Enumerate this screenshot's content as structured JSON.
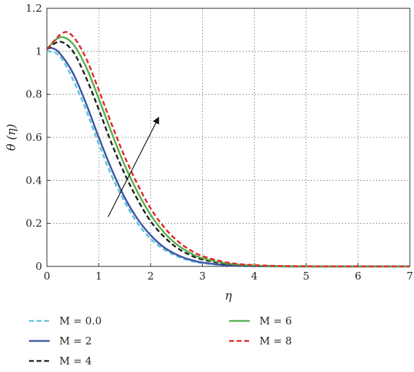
{
  "chart_data": {
    "type": "line",
    "title": "",
    "xlabel": "η",
    "ylabel": "θ (η)",
    "xlim": [
      0,
      7
    ],
    "ylim": [
      0,
      1.2
    ],
    "xticks": [
      "0",
      "1",
      "2",
      "3",
      "4",
      "5",
      "6",
      "7"
    ],
    "yticks": [
      "0",
      "0.2",
      "0.4",
      "0.6",
      "0.8",
      "1",
      "1.2"
    ],
    "grid": true,
    "legend_position": "bottom",
    "series": [
      {
        "name": "M = 0.0",
        "color": "#5bc4e0",
        "dash": "dashed",
        "x": [
          0,
          0.15,
          0.3,
          0.5,
          0.75,
          1.0,
          1.25,
          1.5,
          1.75,
          2.0,
          2.25,
          2.5,
          2.75,
          3.0,
          3.5,
          4.0,
          5.0,
          6.0,
          7.0
        ],
        "y": [
          1.0,
          0.995,
          0.96,
          0.87,
          0.73,
          0.57,
          0.42,
          0.3,
          0.2,
          0.128,
          0.08,
          0.048,
          0.027,
          0.015,
          0.004,
          0.001,
          0.0,
          0.0,
          0.0
        ]
      },
      {
        "name": "M = 2",
        "color": "#3e54a3",
        "dash": "solid",
        "x": [
          0,
          0.1,
          0.25,
          0.5,
          0.75,
          1.0,
          1.25,
          1.5,
          1.75,
          2.0,
          2.25,
          2.5,
          2.75,
          3.0,
          3.5,
          4.0,
          5.0,
          6.0,
          7.0
        ],
        "y": [
          1.01,
          1.015,
          0.99,
          0.9,
          0.76,
          0.6,
          0.45,
          0.32,
          0.22,
          0.145,
          0.09,
          0.055,
          0.032,
          0.018,
          0.005,
          0.001,
          0.0,
          0.0,
          0.0
        ]
      },
      {
        "name": "M = 4",
        "color": "#222222",
        "dash": "dashed",
        "x": [
          0,
          0.25,
          0.5,
          0.75,
          1.0,
          1.25,
          1.5,
          1.75,
          2.0,
          2.25,
          2.5,
          2.75,
          3.0,
          3.5,
          4.0,
          4.5,
          5.0,
          6.0,
          7.0
        ],
        "y": [
          1.01,
          1.045,
          1.0,
          0.88,
          0.73,
          0.57,
          0.43,
          0.31,
          0.21,
          0.14,
          0.088,
          0.054,
          0.032,
          0.01,
          0.003,
          0.001,
          0.0,
          0.0,
          0.0
        ]
      },
      {
        "name": "M = 6",
        "color": "#55b04a",
        "dash": "solid",
        "x": [
          0,
          0.25,
          0.5,
          0.75,
          1.0,
          1.25,
          1.5,
          1.75,
          2.0,
          2.25,
          2.5,
          2.75,
          3.0,
          3.5,
          4.0,
          4.5,
          5.0,
          6.0,
          7.0
        ],
        "y": [
          1.01,
          1.065,
          1.035,
          0.93,
          0.78,
          0.62,
          0.47,
          0.345,
          0.24,
          0.16,
          0.103,
          0.064,
          0.038,
          0.013,
          0.004,
          0.001,
          0.0,
          0.0,
          0.0
        ]
      },
      {
        "name": "M = 8",
        "color": "#e0282a",
        "dash": "dashed",
        "x": [
          0,
          0.3,
          0.5,
          0.75,
          1.0,
          1.25,
          1.5,
          1.75,
          2.0,
          2.25,
          2.5,
          2.75,
          3.0,
          3.5,
          4.0,
          4.5,
          5.0,
          6.0,
          7.0
        ],
        "y": [
          1.01,
          1.085,
          1.07,
          0.97,
          0.82,
          0.66,
          0.51,
          0.38,
          0.27,
          0.185,
          0.122,
          0.078,
          0.048,
          0.017,
          0.006,
          0.002,
          0.001,
          0.0,
          0.0
        ]
      }
    ],
    "annotations": [
      {
        "type": "arrow",
        "from": [
          1.18,
          0.23
        ],
        "to": [
          2.15,
          0.69
        ],
        "color": "#111111"
      }
    ]
  }
}
